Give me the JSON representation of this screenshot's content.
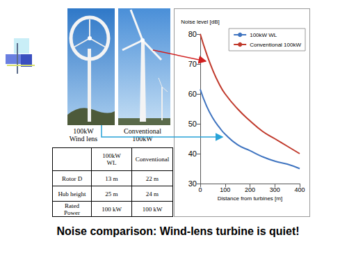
{
  "chart_data": {
    "type": "line",
    "x_label": "Distance from turbines [m]",
    "y_label": "Noise level [dB]",
    "x": [
      0,
      25,
      50,
      75,
      100,
      150,
      200,
      250,
      300,
      350,
      400
    ],
    "series": [
      {
        "name": "100kW WL",
        "color": "#3f74c0",
        "values": [
          61.5,
          56,
          52,
          49,
          46.5,
          43,
          41,
          39,
          37.5,
          36.5,
          35
        ]
      },
      {
        "name": "Conventional 100kW",
        "color": "#c0392b",
        "values": [
          80,
          73.5,
          68,
          63.5,
          60,
          55,
          51,
          47.5,
          45,
          42.5,
          40
        ]
      }
    ],
    "xlim": [
      0,
      400
    ],
    "xticks": [
      0,
      100,
      200,
      300,
      400
    ],
    "ylim": [
      30,
      80
    ],
    "yticks": [
      30,
      40,
      50,
      60,
      70,
      80
    ],
    "grid": false,
    "legend": "upper right"
  },
  "slide": {
    "title": "Noise comparison: Wind-lens turbine is quiet!",
    "captions": [
      [
        "100kW",
        "Wind lens"
      ],
      [
        "Conventional",
        "100kW"
      ]
    ],
    "table": {
      "header": [
        [
          "100kW",
          "WL"
        ],
        [
          "Conventional"
        ]
      ],
      "rows": [
        [
          [
            "Rotor D"
          ],
          [
            "13 m"
          ],
          [
            "22 m"
          ]
        ],
        [
          [
            "Hub height"
          ],
          [
            "25 m"
          ],
          [
            "24 m"
          ]
        ],
        [
          [
            "Rated",
            "Power"
          ],
          [
            "100 kW"
          ],
          [
            "100 kW"
          ]
        ]
      ]
    }
  }
}
